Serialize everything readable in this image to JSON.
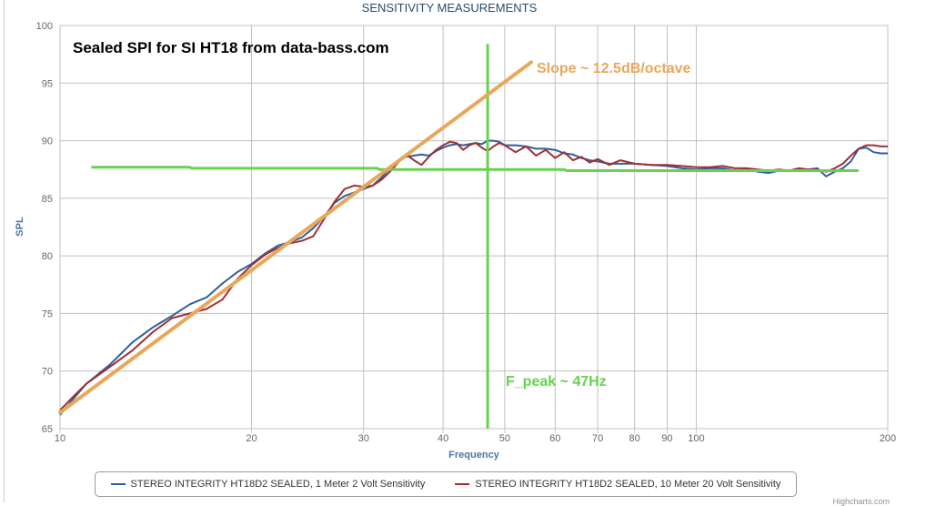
{
  "chart_data": {
    "type": "line",
    "title": "SENSITIVITY MEASUREMENTS",
    "xlabel": "Frequency",
    "ylabel": "SPL",
    "x_scale": "log",
    "xlim": [
      10,
      200
    ],
    "ylim": [
      65,
      100
    ],
    "x_ticks": [
      10,
      20,
      30,
      40,
      50,
      60,
      70,
      80,
      90,
      100,
      200
    ],
    "y_ticks": [
      65,
      70,
      75,
      80,
      85,
      90,
      95,
      100
    ],
    "grid": true,
    "legend_position": "bottom",
    "series": [
      {
        "name": "STEREO INTEGRITY HT18D2 SEALED, 1 Meter 2 Volt Sensitivity",
        "color": "#2f5f9f",
        "x": [
          10,
          10.5,
          11,
          12,
          13,
          14,
          15,
          16,
          17,
          18,
          19,
          20,
          21,
          22,
          23,
          24,
          25,
          26,
          27,
          28,
          29,
          30,
          31,
          32,
          33,
          34,
          35,
          36,
          37,
          38,
          39,
          40,
          41,
          42,
          43,
          44,
          45,
          46,
          47,
          48,
          49,
          50,
          52,
          54,
          56,
          58,
          60,
          62,
          64,
          66,
          68,
          70,
          73,
          76,
          80,
          85,
          90,
          95,
          100,
          105,
          110,
          115,
          120,
          125,
          130,
          135,
          140,
          145,
          150,
          155,
          160,
          165,
          170,
          175,
          180,
          185,
          190,
          195,
          200
        ],
        "y": [
          66.2,
          67.6,
          68.9,
          70.6,
          72.5,
          73.8,
          74.8,
          75.8,
          76.4,
          77.6,
          78.6,
          79.3,
          80.2,
          80.9,
          81.2,
          81.6,
          82.4,
          83.4,
          84.6,
          85.2,
          85.5,
          85.8,
          86.1,
          86.8,
          87.6,
          88.2,
          88.6,
          88.7,
          88.8,
          88.7,
          89.1,
          89.4,
          89.6,
          89.7,
          89.6,
          89.7,
          89.8,
          89.7,
          90.0,
          90.0,
          89.9,
          89.6,
          89.6,
          89.5,
          89.3,
          89.3,
          89.2,
          88.9,
          88.8,
          88.5,
          88.3,
          88.2,
          88.0,
          88.0,
          88.0,
          87.9,
          87.8,
          87.6,
          87.5,
          87.6,
          87.6,
          87.4,
          87.5,
          87.3,
          87.2,
          87.4,
          87.4,
          87.5,
          87.5,
          87.6,
          86.9,
          87.3,
          87.6,
          88.2,
          89.3,
          89.4,
          89.0,
          88.9,
          88.9
        ]
      },
      {
        "name": "STEREO INTEGRITY HT18D2 SEALED, 10 Meter 20 Volt Sensitivity",
        "color": "#a03030",
        "x": [
          10,
          10.5,
          11,
          12,
          13,
          14,
          15,
          16,
          17,
          18,
          19,
          20,
          21,
          22,
          23,
          24,
          25,
          26,
          27,
          28,
          29,
          30,
          31,
          32,
          33,
          34,
          35,
          36,
          37,
          38,
          39,
          40,
          41,
          42,
          43,
          44,
          45,
          46,
          47,
          48,
          49,
          50,
          52,
          54,
          56,
          58,
          60,
          62,
          64,
          66,
          68,
          70,
          73,
          76,
          80,
          85,
          90,
          95,
          100,
          105,
          110,
          115,
          120,
          125,
          130,
          135,
          140,
          145,
          150,
          155,
          160,
          165,
          170,
          175,
          180,
          185,
          190,
          195,
          200
        ],
        "y": [
          66.6,
          67.8,
          68.9,
          70.4,
          71.8,
          73.4,
          74.6,
          75.0,
          75.4,
          76.2,
          78.0,
          79.2,
          80.1,
          80.7,
          81.1,
          81.3,
          81.7,
          83.2,
          84.7,
          85.8,
          86.1,
          86.0,
          86.1,
          86.6,
          87.3,
          88.1,
          88.8,
          88.3,
          87.9,
          88.6,
          89.2,
          89.6,
          89.9,
          89.8,
          89.2,
          89.6,
          89.8,
          89.4,
          89.1,
          89.5,
          89.8,
          89.6,
          89.0,
          89.5,
          88.7,
          89.2,
          88.5,
          89.0,
          88.3,
          88.6,
          88.1,
          88.4,
          87.9,
          88.3,
          88.0,
          87.9,
          87.9,
          87.8,
          87.7,
          87.7,
          87.8,
          87.6,
          87.6,
          87.5,
          87.4,
          87.5,
          87.4,
          87.6,
          87.5,
          87.5,
          87.3,
          87.6,
          88.0,
          88.7,
          89.3,
          89.6,
          89.6,
          89.5,
          89.5
        ]
      }
    ],
    "annotations": {
      "main_text": "Sealed SPl for SI HT18 from data-bass.com",
      "slope_text": "Slope ~ 12.5dB/octave",
      "fpeak_text": "F_peak ~ 47Hz",
      "orange_color": "#e8a85a",
      "green_color": "#66d24e",
      "slope_line": {
        "x": [
          10,
          55
        ],
        "y": [
          66.4,
          96.8
        ]
      },
      "vertical_line": {
        "x": 47,
        "y": [
          65,
          98.4
        ]
      },
      "horizontal_line": {
        "x": [
          11.2,
          16,
          16.1,
          31.5,
          31.8,
          62,
          62.5,
          180
        ],
        "y": [
          87.7,
          87.7,
          87.6,
          87.6,
          87.5,
          87.5,
          87.4,
          87.4
        ]
      }
    }
  },
  "credits": "Highcharts.com"
}
